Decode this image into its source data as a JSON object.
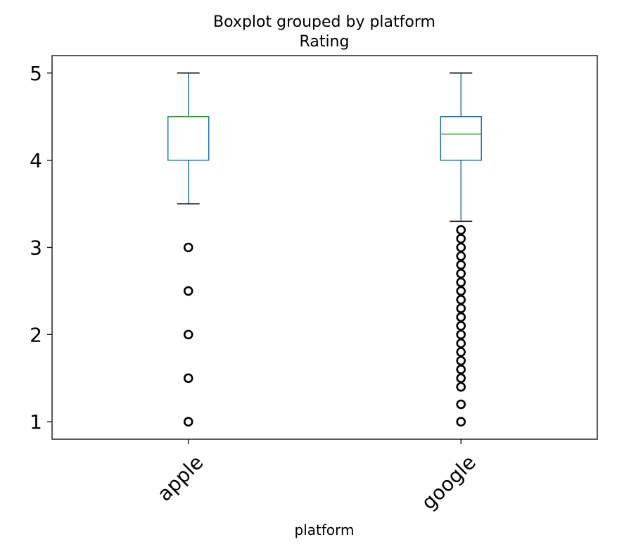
{
  "chart_data": {
    "type": "boxplot",
    "title": "Boxplot grouped by platform",
    "subtitle": "Rating",
    "xlabel": "platform",
    "ylabel": "",
    "categories": [
      "apple",
      "google"
    ],
    "ylim": [
      0.8,
      5.2
    ],
    "yticks": [
      1,
      2,
      3,
      4,
      5
    ],
    "ytick_labels": [
      "1",
      "2",
      "3",
      "4",
      "5"
    ],
    "xtick_rotation": 45,
    "grid": false,
    "legend": false,
    "colors": {
      "box": "#1f77b4",
      "median": "#2ca02c",
      "whisker": "#1f77b4",
      "cap": "#000000",
      "flier": "#000000",
      "axes": "#000000"
    },
    "boxes": [
      {
        "category": "apple",
        "whislo": 3.5,
        "q1": 4.0,
        "med": 4.5,
        "q3": 4.5,
        "whishi": 5.0,
        "fliers": [
          3.0,
          2.5,
          2.0,
          1.5,
          1.0
        ]
      },
      {
        "category": "google",
        "whislo": 3.3,
        "q1": 4.0,
        "med": 4.3,
        "q3": 4.5,
        "whishi": 5.0,
        "fliers": [
          3.2,
          3.1,
          3.0,
          2.9,
          2.8,
          2.7,
          2.6,
          2.5,
          2.4,
          2.3,
          2.2,
          2.1,
          2.0,
          1.9,
          1.8,
          1.7,
          1.6,
          1.5,
          1.4,
          1.2,
          1.0
        ]
      }
    ]
  }
}
